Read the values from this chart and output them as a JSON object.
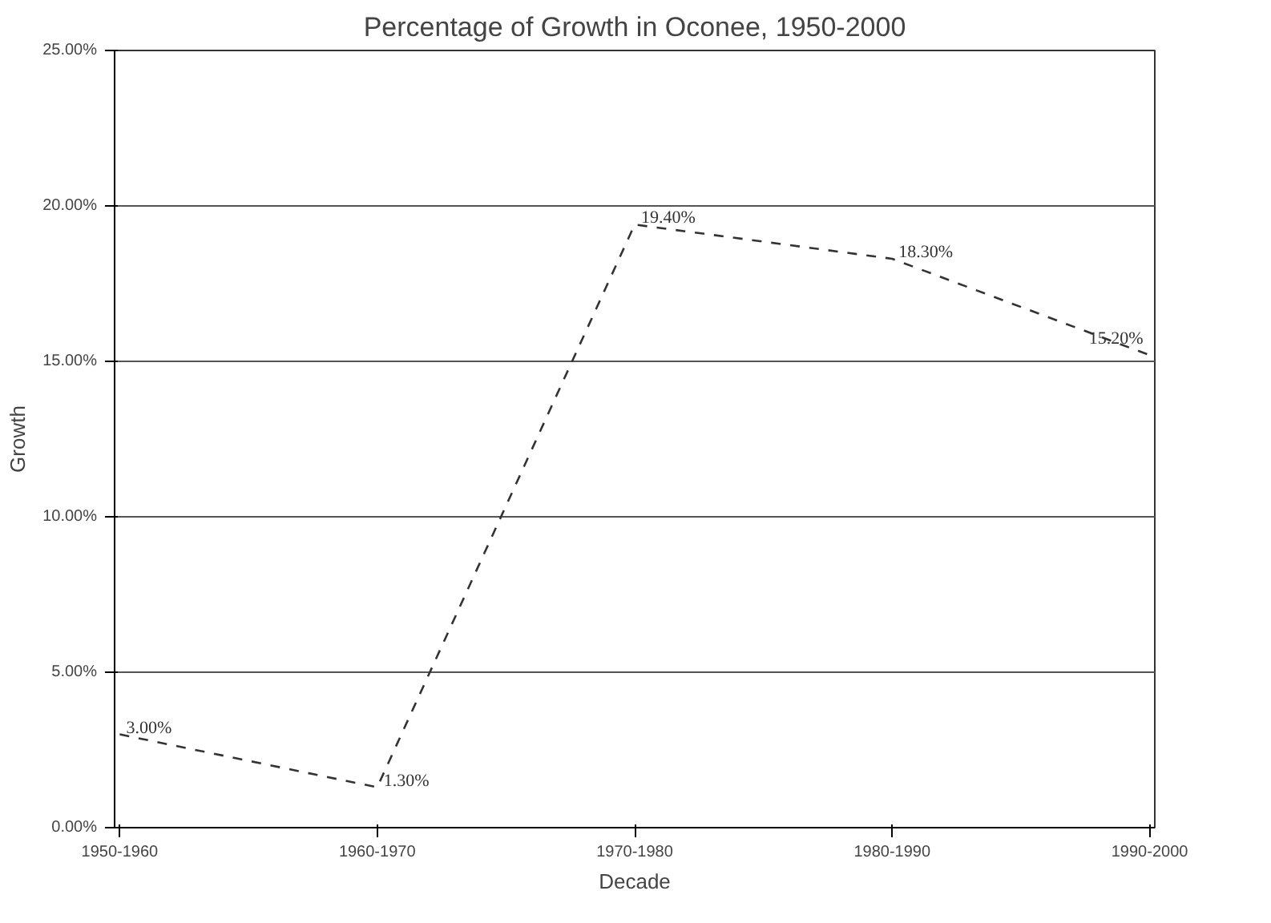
{
  "chart_data": {
    "type": "line",
    "title": "Percentage of Growth in Oconee, 1950-2000",
    "xlabel": "Decade",
    "ylabel": "Growth",
    "categories": [
      "1950-1960",
      "1960-1970",
      "1970-1980",
      "1980-1990",
      "1990-2000"
    ],
    "series": [
      {
        "color": "#333333",
        "values": [
          3.0,
          1.3,
          19.4,
          18.3,
          15.2
        ]
      }
    ],
    "value_labels": [
      "3.00%",
      "1.30%",
      "19.40%",
      "18.30%",
      "15.20%"
    ],
    "ylim": [
      0,
      25
    ],
    "yticks": [
      {
        "value": 0,
        "label": "0.00%"
      },
      {
        "value": 5,
        "label": "5.00%"
      },
      {
        "value": 10,
        "label": "10.00%"
      },
      {
        "value": 15,
        "label": "15.00%"
      },
      {
        "value": 20,
        "label": "20.00%"
      },
      {
        "value": 25,
        "label": "25.00%"
      }
    ],
    "grid": "y",
    "line_style": "dashed"
  }
}
